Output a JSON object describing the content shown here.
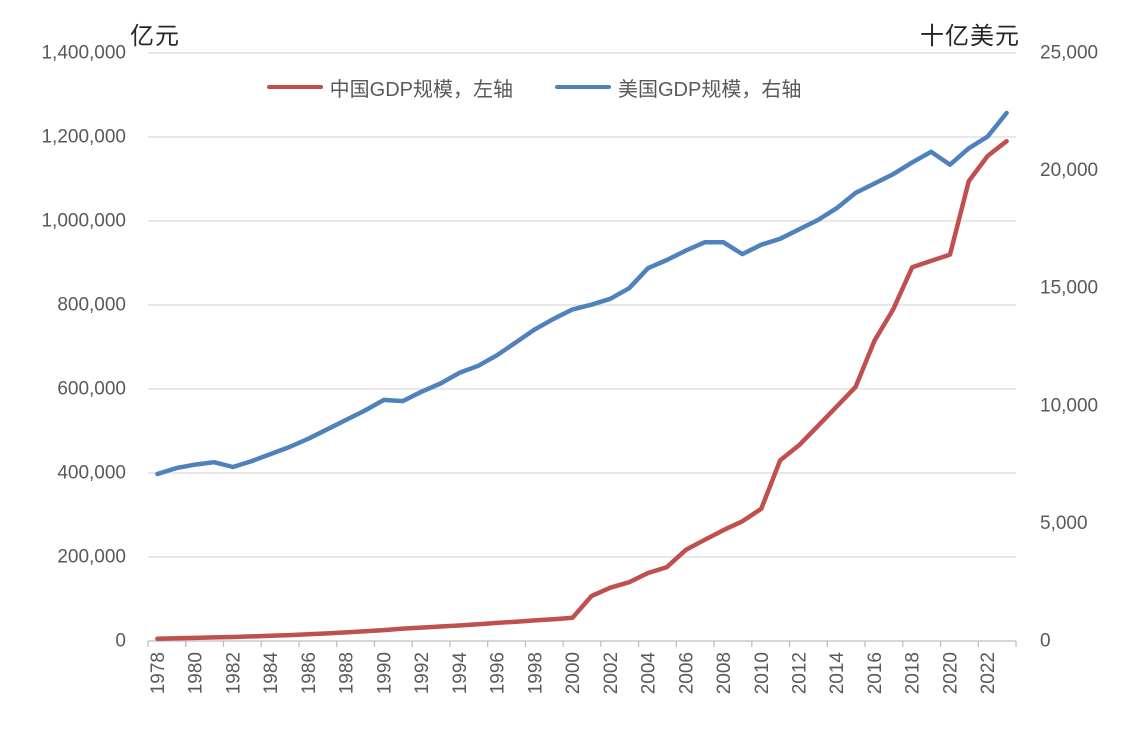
{
  "chart_data": {
    "type": "line",
    "years": [
      1978,
      1979,
      1980,
      1981,
      1982,
      1983,
      1984,
      1985,
      1986,
      1987,
      1988,
      1989,
      1990,
      1991,
      1992,
      1993,
      1994,
      1995,
      1996,
      1997,
      1998,
      1999,
      2000,
      2001,
      2002,
      2003,
      2004,
      2005,
      2006,
      2007,
      2008,
      2009,
      2010,
      2011,
      2012,
      2013,
      2014,
      2015,
      2016,
      2017,
      2018,
      2019,
      2020,
      2021,
      2022,
      2023
    ],
    "x_label_step": 2,
    "left_axis": {
      "title": "亿元",
      "min": 0,
      "max": 1400000,
      "tick_step": 200000
    },
    "right_axis": {
      "title": "十亿美元",
      "min": 0,
      "max": 25000,
      "tick_step": 5000
    },
    "grid": "horizontal, follows left axis ticks",
    "legend_position": "top-center",
    "series": [
      {
        "name": "中国GDP规模，左轴",
        "axis": "left",
        "color": "#c0504d",
        "values": [
          5500,
          6500,
          7500,
          8500,
          9500,
          11000,
          12500,
          14000,
          16000,
          18000,
          20500,
          23000,
          26000,
          29500,
          32000,
          34500,
          37000,
          40000,
          43000,
          46000,
          49000,
          52000,
          55500,
          107000,
          127000,
          140000,
          162000,
          176000,
          217000,
          241000,
          264000,
          285000,
          315000,
          430000,
          466000,
          512000,
          558000,
          605000,
          715000,
          790000,
          890000,
          905000,
          920000,
          1095000,
          1155000,
          1190000
        ]
      },
      {
        "name": "美国GDP规模，右轴",
        "axis": "right",
        "color": "#4f81bd",
        "values": [
          7100,
          7350,
          7500,
          7600,
          7400,
          7650,
          7950,
          8250,
          8600,
          9000,
          9400,
          9800,
          10250,
          10200,
          10600,
          10950,
          11400,
          11700,
          12150,
          12700,
          13250,
          13700,
          14100,
          14300,
          14550,
          15000,
          15850,
          16200,
          16600,
          16950,
          16950,
          16450,
          16850,
          17100,
          17500,
          17900,
          18400,
          19050,
          19450,
          19850,
          20350,
          20800,
          20250,
          20950,
          21450,
          22450
        ]
      }
    ],
    "styles": {
      "grid_color": "#d9d9d9",
      "axis_line_color": "#bfbfbf",
      "tick_label_color": "#595959",
      "line_width": 4.5
    }
  }
}
